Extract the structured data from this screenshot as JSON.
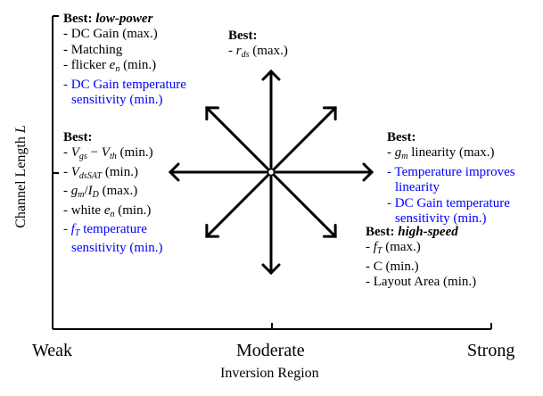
{
  "axes": {
    "x_label": "Inversion Region",
    "x_ticks": [
      "Weak",
      "Moderate",
      "Strong"
    ],
    "y_label": "Channel Length L"
  },
  "blocks": {
    "low_power": {
      "head": "Best:",
      "qualifier": "low-power",
      "lines": [
        {
          "text": "- DC Gain (max.)",
          "color": "black"
        },
        {
          "text": "- Matching",
          "color": "black"
        },
        {
          "text": "- flicker e",
          "sub": "n",
          "after": " (min.)",
          "color": "black"
        },
        {
          "text": "- DC Gain temperature",
          "color": "blue"
        },
        {
          "text": "sensitivity (min.)",
          "color": "blue",
          "indent": true
        }
      ]
    },
    "top": {
      "head": "Best:",
      "lines": [
        {
          "text": "- r",
          "sub": "ds",
          "after": " (max.)",
          "color": "black"
        }
      ]
    },
    "left": {
      "head": "Best:",
      "lines": [
        {
          "text": "- V",
          "sub": "gs",
          "after": " − V",
          "sub2": "th",
          "after2": " (min.)",
          "color": "black"
        },
        {
          "text": "- V",
          "sub": "dsSAT",
          "after": " (min.)",
          "color": "black"
        },
        {
          "text": "- g",
          "sub": "m",
          "after": "/I",
          "sub2": "D",
          "after2": " (max.)",
          "color": "black"
        },
        {
          "text": "- white e",
          "sub": "n",
          "after": " (min.)",
          "color": "black"
        },
        {
          "text": "- f",
          "sub": "T",
          "after": " temperature",
          "color": "blue"
        },
        {
          "text": "sensitivity (min.)",
          "color": "blue",
          "indent": true
        }
      ]
    },
    "right": {
      "head": "Best:",
      "lines": [
        {
          "text": "- g",
          "sub": "m",
          "after": " linearity (max.)",
          "color": "black"
        },
        {
          "text": "- Temperature improves",
          "color": "blue"
        },
        {
          "text": "linearity",
          "color": "blue",
          "indent": true
        },
        {
          "text": "- DC Gain temperature",
          "color": "blue"
        },
        {
          "text": "sensitivity (min.)",
          "color": "blue",
          "indent": true
        }
      ]
    },
    "high_speed": {
      "head": "Best:",
      "qualifier": "high-speed",
      "lines": [
        {
          "text": "- f",
          "sub": "T",
          "after": " (max.)",
          "color": "black"
        },
        {
          "text": "- C (min.)",
          "color": "black"
        },
        {
          "text": "- Layout Area (min.)",
          "color": "black"
        }
      ]
    }
  },
  "arrows": {
    "directions": [
      "up",
      "down",
      "left",
      "right",
      "up-left",
      "up-right",
      "down-left",
      "down-right"
    ]
  },
  "colors": {
    "text": "#000000",
    "highlight": "#0000ff"
  }
}
